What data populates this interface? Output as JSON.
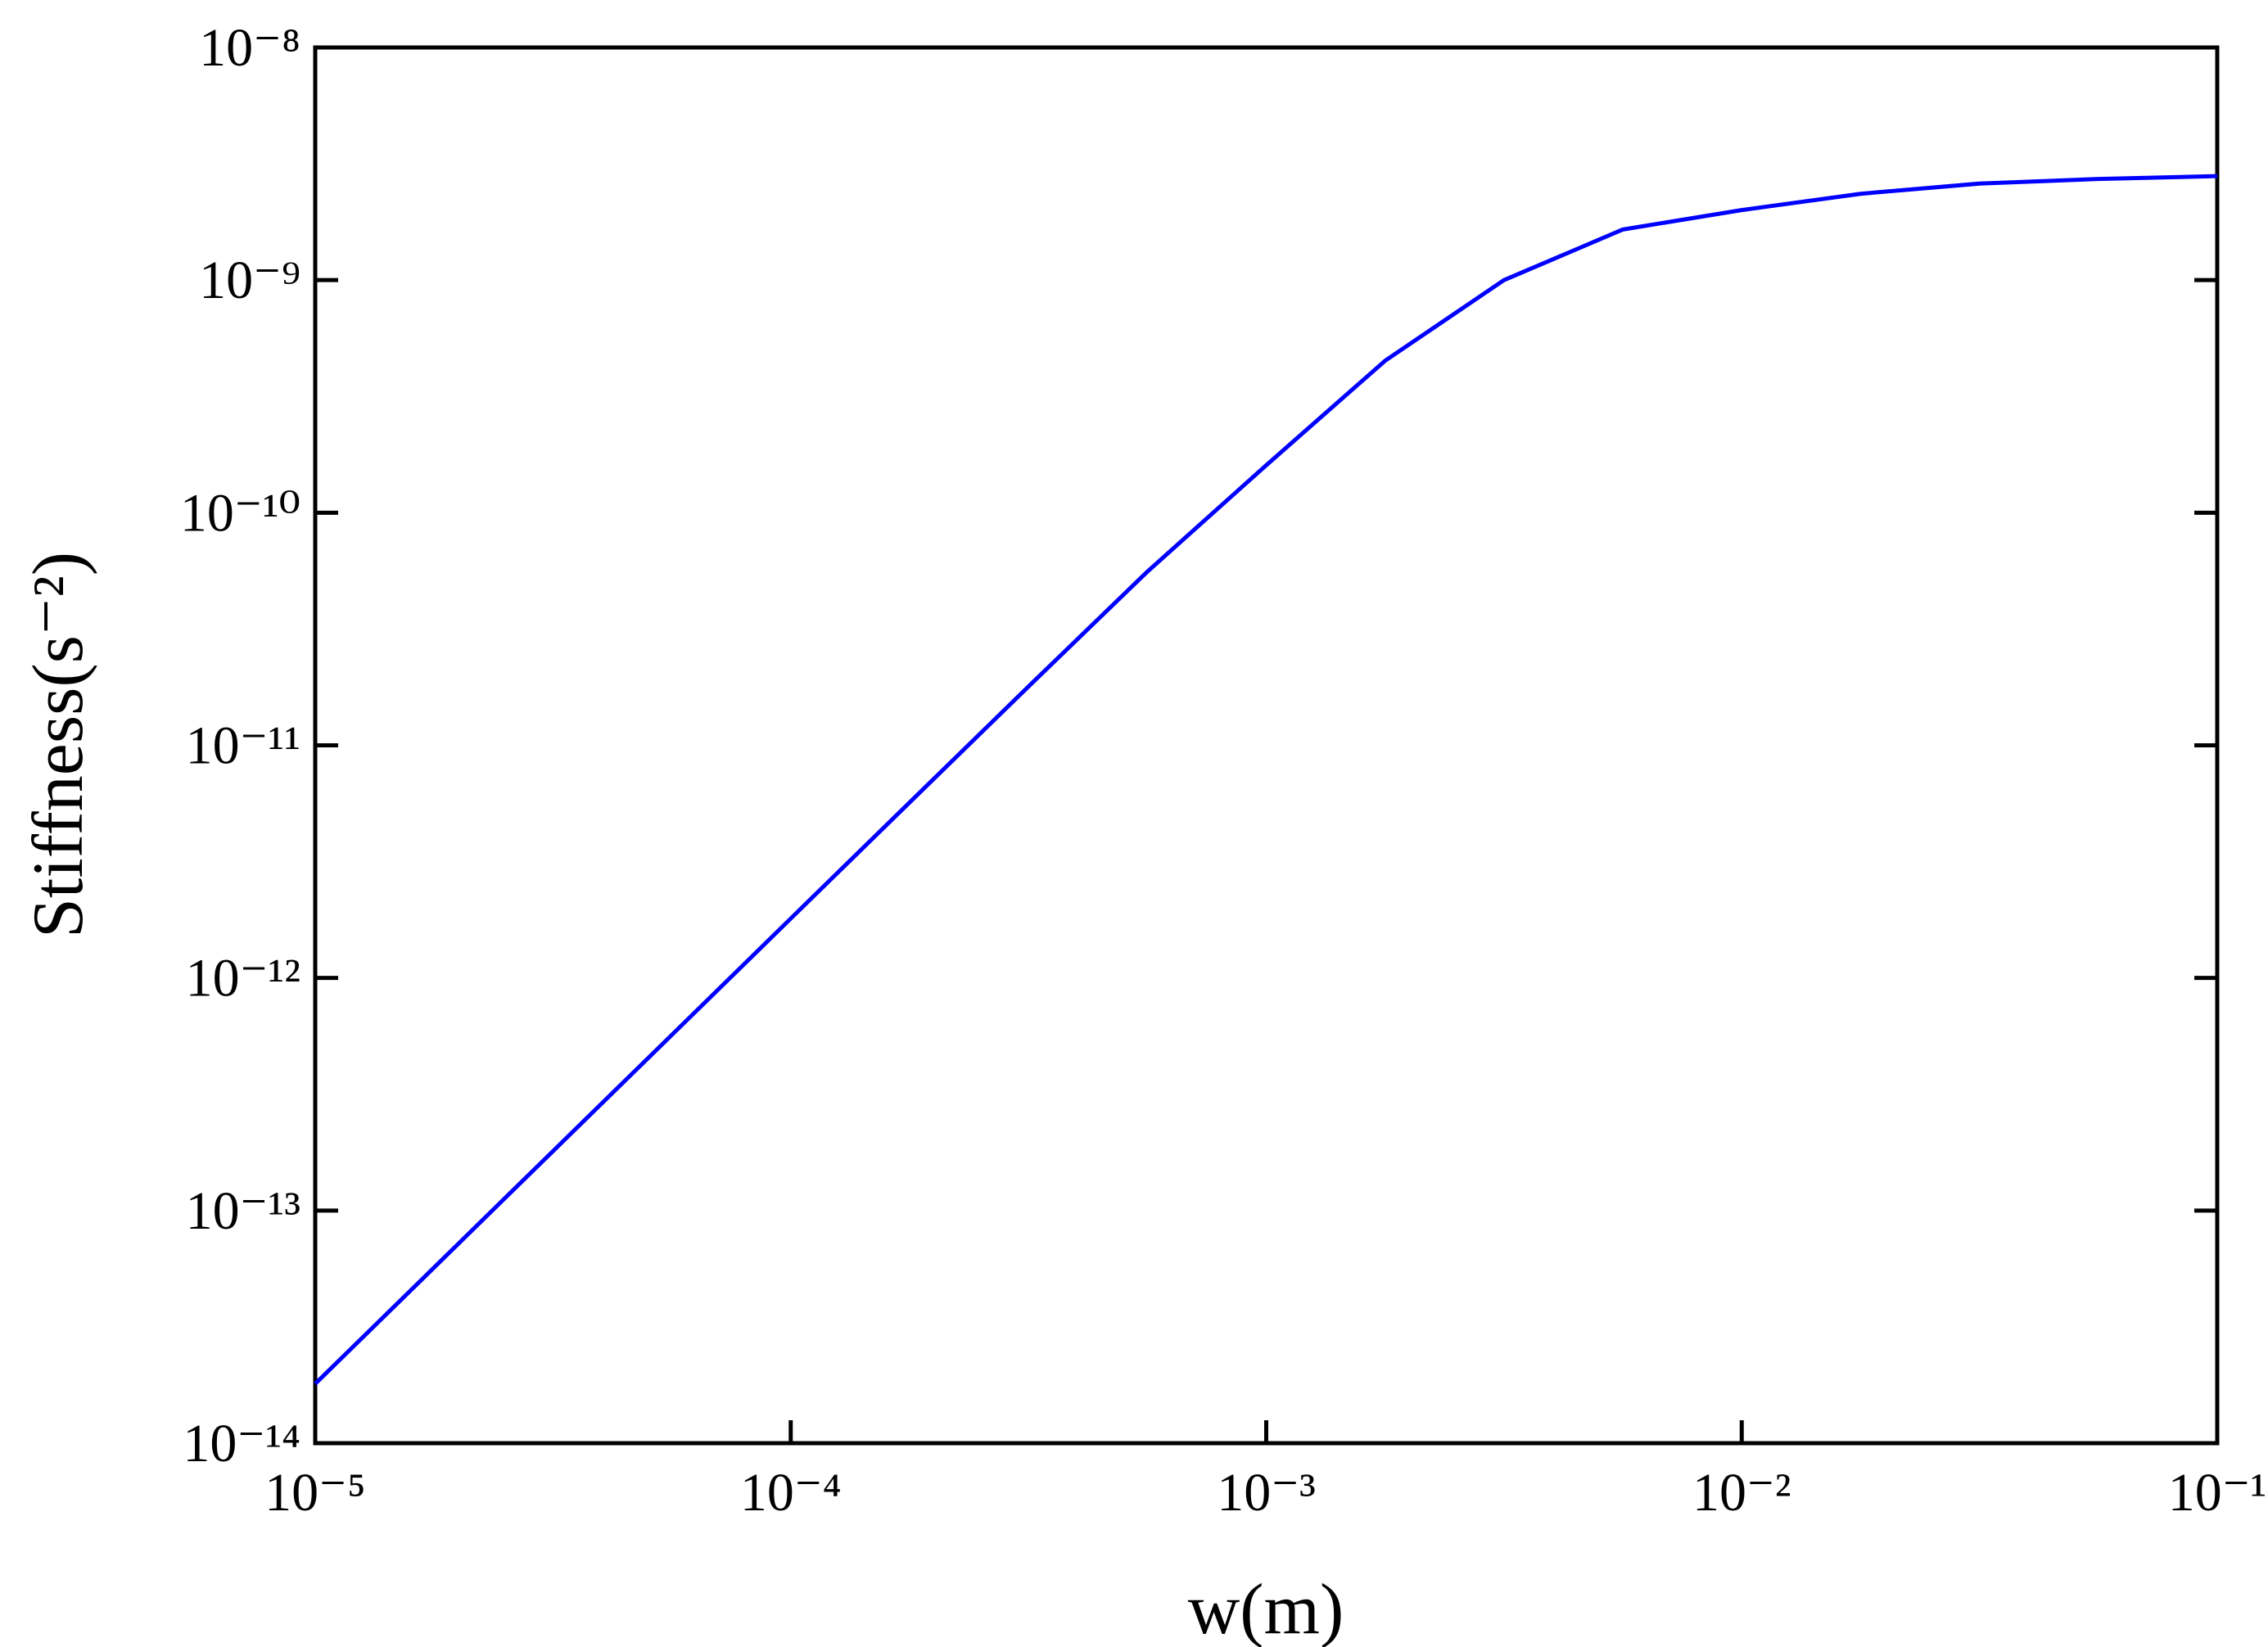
{
  "chart_data": {
    "type": "line",
    "x_label": "w(m)",
    "y_label": "Stiffness(s⁻²)",
    "xscale": "log",
    "yscale": "log",
    "xlim": [
      1e-05,
      0.1
    ],
    "ylim": [
      1e-14,
      1e-08
    ],
    "xticks": [
      {
        "value": 1e-05,
        "label": "10⁻⁵"
      },
      {
        "value": 0.0001,
        "label": "10⁻⁴"
      },
      {
        "value": 0.001,
        "label": "10⁻³"
      },
      {
        "value": 0.01,
        "label": "10⁻²"
      },
      {
        "value": 0.1,
        "label": "10⁻¹"
      }
    ],
    "yticks": [
      {
        "value": 1e-14,
        "label": "10⁻¹⁴"
      },
      {
        "value": 1e-13,
        "label": "10⁻¹³"
      },
      {
        "value": 1e-12,
        "label": "10⁻¹²"
      },
      {
        "value": 1e-11,
        "label": "10⁻¹¹"
      },
      {
        "value": 1e-10,
        "label": "10⁻¹⁰"
      },
      {
        "value": 1e-09,
        "label": "10⁻⁹"
      },
      {
        "value": 1e-08,
        "label": "10⁻⁸"
      }
    ],
    "x": [
      1e-05,
      1.778e-05,
      3.162e-05,
      5.623e-05,
      0.0001,
      0.0001778,
      0.0003162,
      0.0005623,
      0.001,
      0.001778,
      0.003162,
      0.005623,
      0.01,
      0.01778,
      0.03162,
      0.05623,
      0.1
    ],
    "series": [
      {
        "color": "#0000ff",
        "values": [
          1.8e-14,
          5.69e-14,
          1.8e-13,
          5.69e-13,
          1.8e-12,
          5.68e-12,
          1.79e-11,
          5.58e-11,
          1.6e-10,
          4.5e-10,
          1e-09,
          1.65e-09,
          2e-09,
          2.35e-09,
          2.6e-09,
          2.72e-09,
          2.8e-09
        ]
      }
    ]
  }
}
